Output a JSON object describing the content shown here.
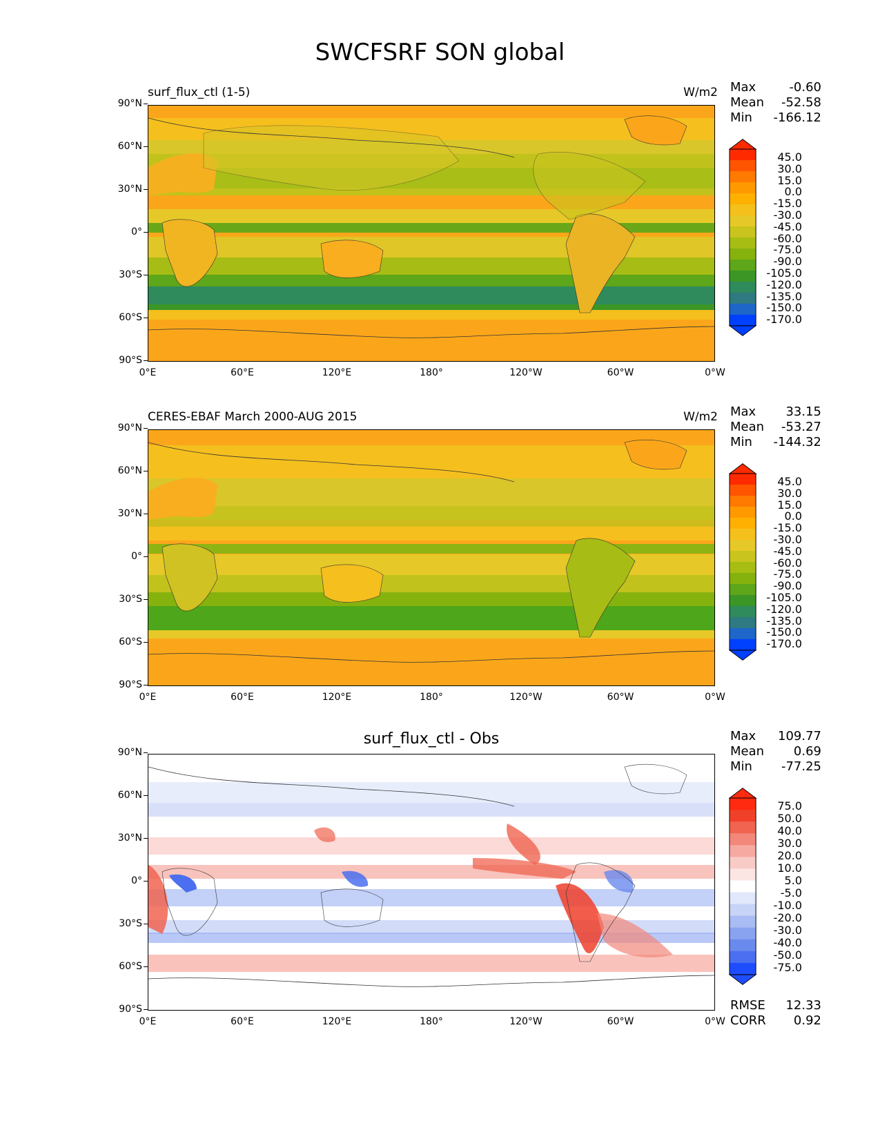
{
  "figure": {
    "title": "SWCFSRF SON global"
  },
  "axes": {
    "yticks": [
      "90°N",
      "60°N",
      "30°N",
      "0°",
      "30°S",
      "60°S",
      "90°S"
    ],
    "xticks": [
      "0°E",
      "60°E",
      "120°E",
      "180°",
      "120°W",
      "60°W",
      "0°W"
    ]
  },
  "panels": [
    {
      "title_left": "surf_flux_ctl (1-5)",
      "title_right": "W/m2",
      "title_center": "",
      "stats": {
        "max_label": "Max",
        "max": "-0.60",
        "mean_label": "Mean",
        "mean": "-52.58",
        "min_label": "Min",
        "min": "-166.12"
      },
      "colorbar": {
        "labels": [
          "45.0",
          "30.0",
          "15.0",
          "0.0",
          "-15.0",
          "-30.0",
          "-45.0",
          "-60.0",
          "-75.0",
          "-90.0",
          "-105.0",
          "-120.0",
          "-135.0",
          "-150.0",
          "-170.0"
        ],
        "colors": [
          "#ff2a00",
          "#ff5500",
          "#ff7a00",
          "#ff9900",
          "#ffb000",
          "#f5c01c",
          "#e6c928",
          "#c9c41e",
          "#a8bd14",
          "#86b20e",
          "#5ea61a",
          "#3b9626",
          "#2f8a5c",
          "#2f7a80",
          "#1e66c8",
          "#0040ff"
        ]
      }
    },
    {
      "title_left": "CERES-EBAF March 2000-AUG 2015",
      "title_right": "W/m2",
      "title_center": "",
      "stats": {
        "max_label": "Max",
        "max": "33.15",
        "mean_label": "Mean",
        "mean": "-53.27",
        "min_label": "Min",
        "min": "-144.32"
      },
      "colorbar": {
        "labels": [
          "45.0",
          "30.0",
          "15.0",
          "0.0",
          "-15.0",
          "-30.0",
          "-45.0",
          "-60.0",
          "-75.0",
          "-90.0",
          "-105.0",
          "-120.0",
          "-135.0",
          "-150.0",
          "-170.0"
        ],
        "colors": [
          "#ff2a00",
          "#ff5500",
          "#ff7a00",
          "#ff9900",
          "#ffb000",
          "#f5c01c",
          "#e6c928",
          "#c9c41e",
          "#a8bd14",
          "#86b20e",
          "#5ea61a",
          "#3b9626",
          "#2f8a5c",
          "#2f7a80",
          "#1e66c8",
          "#0040ff"
        ]
      }
    },
    {
      "title_left": "",
      "title_right": "",
      "title_center": "surf_flux_ctl - Obs",
      "stats": {
        "max_label": "Max",
        "max": "109.77",
        "mean_label": "Mean",
        "mean": "0.69",
        "min_label": "Min",
        "min": "-77.25"
      },
      "colorbar": {
        "labels": [
          "75.0",
          "50.0",
          "40.0",
          "30.0",
          "20.0",
          "10.0",
          "5.0",
          "-5.0",
          "-10.0",
          "-20.0",
          "-30.0",
          "-40.0",
          "-50.0",
          "-75.0"
        ],
        "colors": [
          "#ff2a10",
          "#f0402a",
          "#f06450",
          "#f2877a",
          "#f6a9a0",
          "#f9cbc6",
          "#fce6e3",
          "#ffffff",
          "#e2e8fb",
          "#c7d3f7",
          "#a9bcf3",
          "#8aa3f0",
          "#6b8aee",
          "#4b6ff0",
          "#1e4dff"
        ]
      },
      "bottom_stats": {
        "rmse_label": "RMSE",
        "rmse": "12.33",
        "corr_label": "CORR",
        "corr": "0.92"
      }
    }
  ]
}
